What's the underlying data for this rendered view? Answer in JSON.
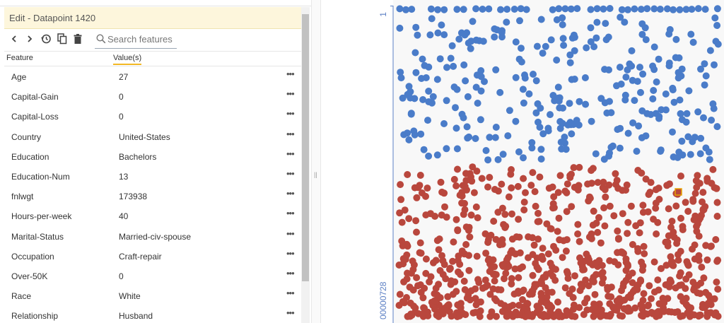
{
  "edit_panel": {
    "title": "Edit - Datapoint 1420",
    "toolbar": {
      "back_icon": "chevron-left-icon",
      "forward_icon": "chevron-right-icon",
      "history_icon": "history-icon",
      "copy_icon": "copy-icon",
      "delete_icon": "trash-icon",
      "search_icon": "search-icon",
      "search_placeholder": "Search features"
    },
    "columns": {
      "feature": "Feature",
      "value": "Value(s)"
    },
    "features": [
      {
        "name": "Age",
        "value": "27"
      },
      {
        "name": "Capital-Gain",
        "value": "0"
      },
      {
        "name": "Capital-Loss",
        "value": "0"
      },
      {
        "name": "Country",
        "value": "United-States"
      },
      {
        "name": "Education",
        "value": "Bachelors"
      },
      {
        "name": "Education-Num",
        "value": "13"
      },
      {
        "name": "fnlwgt",
        "value": "173938"
      },
      {
        "name": "Hours-per-week",
        "value": "40"
      },
      {
        "name": "Marital-Status",
        "value": "Married-civ-spouse"
      },
      {
        "name": "Occupation",
        "value": "Craft-repair"
      },
      {
        "name": "Over-50K",
        "value": "0"
      },
      {
        "name": "Race",
        "value": "White"
      },
      {
        "name": "Relationship",
        "value": "Husband"
      }
    ],
    "more_glyph": "•••"
  },
  "divider_glyph": "||",
  "scatter": {
    "axis_top_label": "1",
    "axis_bottom_label": "00000728",
    "colors": {
      "class_1": "#4a7cc9",
      "class_0": "#b9473d",
      "selected_border": "#e8a100",
      "axis": "#5b7fc4",
      "background": "#f8f8f8"
    }
  }
}
